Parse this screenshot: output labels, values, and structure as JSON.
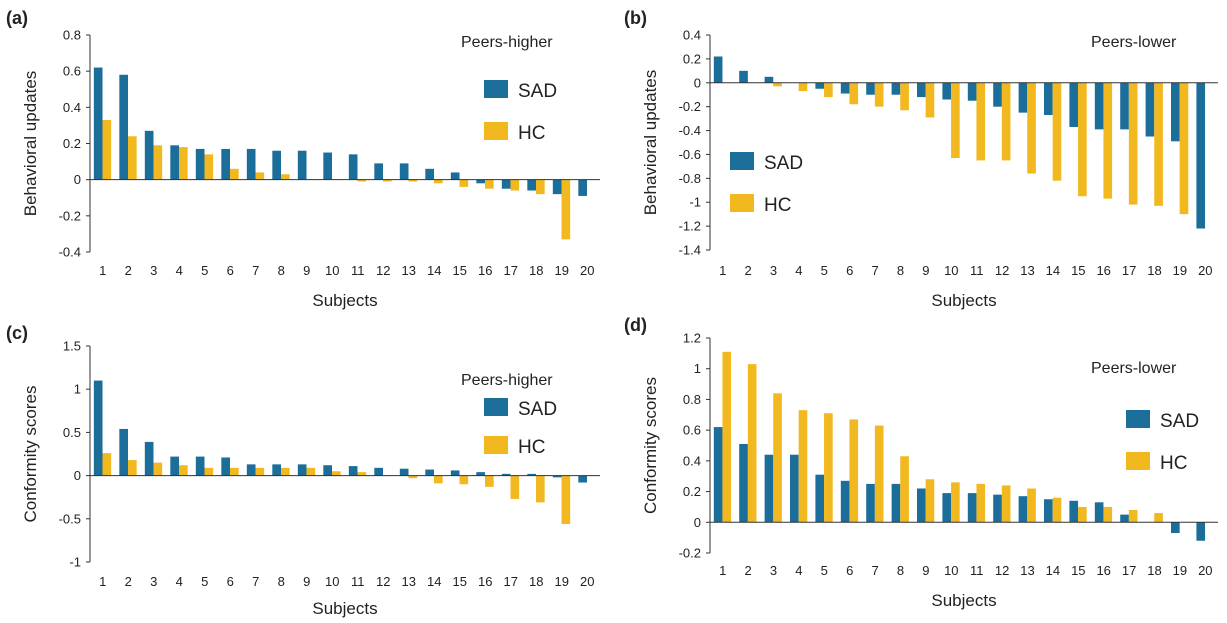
{
  "colors": {
    "SAD": "#1b6d9a",
    "HC": "#f2b81f",
    "axis": "#333333"
  },
  "chart_data": [
    {
      "type": "bar",
      "panel_label": "(a)",
      "annotation": "Peers-higher",
      "xlabel": "Subjects",
      "ylabel": "Behavioral updates",
      "ylim": [
        -0.4,
        0.8
      ],
      "yticks": [
        {
          "v": 0.8,
          "t": "0.8"
        },
        {
          "v": 0.6,
          "t": "0.6"
        },
        {
          "v": 0.4,
          "t": "0.4"
        },
        {
          "v": 0.2,
          "t": "0.2"
        },
        {
          "v": 0,
          "t": "0"
        },
        {
          "v": -0.2,
          "t": "-0.2"
        },
        {
          "v": -0.4,
          "t": "-0.4"
        }
      ],
      "categories": [
        "1",
        "2",
        "3",
        "4",
        "5",
        "6",
        "7",
        "8",
        "9",
        "10",
        "11",
        "12",
        "13",
        "14",
        "15",
        "16",
        "17",
        "18",
        "19",
        "20"
      ],
      "legend": [
        "SAD",
        "HC"
      ],
      "series": [
        {
          "name": "SAD",
          "values": [
            0.62,
            0.58,
            0.27,
            0.19,
            0.17,
            0.17,
            0.17,
            0.16,
            0.16,
            0.15,
            0.14,
            0.09,
            0.09,
            0.06,
            0.04,
            -0.02,
            -0.05,
            -0.06,
            -0.08,
            -0.09
          ]
        },
        {
          "name": "HC",
          "values": [
            0.33,
            0.24,
            0.19,
            0.18,
            0.14,
            0.06,
            0.04,
            0.03,
            0.0,
            0.0,
            -0.01,
            -0.01,
            -0.01,
            -0.02,
            -0.04,
            -0.05,
            -0.06,
            -0.08,
            -0.33,
            0.0
          ]
        }
      ]
    },
    {
      "type": "bar",
      "panel_label": "(b)",
      "annotation": "Peers-lower",
      "xlabel": "Subjects",
      "ylabel": "Behavioral updates",
      "ylim": [
        -1.4,
        0.4
      ],
      "yticks": [
        {
          "v": 0.4,
          "t": "0.4"
        },
        {
          "v": 0.2,
          "t": "0.2"
        },
        {
          "v": 0,
          "t": "0"
        },
        {
          "v": -0.2,
          "t": "-0.2"
        },
        {
          "v": -0.4,
          "t": "-0.4"
        },
        {
          "v": -0.6,
          "t": "-0.6"
        },
        {
          "v": -0.8,
          "t": "-0.8"
        },
        {
          "v": -1,
          "t": "-1"
        },
        {
          "v": -1.2,
          "t": "-1.2"
        },
        {
          "v": -1.4,
          "t": "-1.4"
        }
      ],
      "categories": [
        "1",
        "2",
        "3",
        "4",
        "5",
        "6",
        "7",
        "8",
        "9",
        "10",
        "11",
        "12",
        "13",
        "14",
        "15",
        "16",
        "17",
        "18",
        "19",
        "20"
      ],
      "legend": [
        "SAD",
        "HC"
      ],
      "series": [
        {
          "name": "SAD",
          "values": [
            0.22,
            0.1,
            0.05,
            0.0,
            -0.05,
            -0.09,
            -0.1,
            -0.1,
            -0.12,
            -0.14,
            -0.15,
            -0.2,
            -0.25,
            -0.27,
            -0.37,
            -0.39,
            -0.39,
            -0.45,
            -0.49,
            -1.22
          ]
        },
        {
          "name": "HC",
          "values": [
            0.0,
            0.0,
            -0.03,
            -0.07,
            -0.12,
            -0.18,
            -0.2,
            -0.23,
            -0.29,
            -0.63,
            -0.65,
            -0.65,
            -0.76,
            -0.82,
            -0.95,
            -0.97,
            -1.02,
            -1.03,
            -1.1,
            0.0
          ]
        }
      ]
    },
    {
      "type": "bar",
      "panel_label": "(c)",
      "annotation": "Peers-higher",
      "xlabel": "Subjects",
      "ylabel": "Conformity scores",
      "ylim": [
        -1,
        1.5
      ],
      "yticks": [
        {
          "v": 1.5,
          "t": "1.5"
        },
        {
          "v": 1,
          "t": "1"
        },
        {
          "v": 0.5,
          "t": "0.5"
        },
        {
          "v": 0,
          "t": "0"
        },
        {
          "v": -0.5,
          "t": "-0.5"
        },
        {
          "v": -1,
          "t": "-1"
        }
      ],
      "categories": [
        "1",
        "2",
        "3",
        "4",
        "5",
        "6",
        "7",
        "8",
        "9",
        "10",
        "11",
        "12",
        "13",
        "14",
        "15",
        "16",
        "17",
        "18",
        "19",
        "20"
      ],
      "legend": [
        "SAD",
        "HC"
      ],
      "series": [
        {
          "name": "SAD",
          "values": [
            1.1,
            0.54,
            0.39,
            0.22,
            0.22,
            0.21,
            0.13,
            0.13,
            0.13,
            0.12,
            0.11,
            0.09,
            0.08,
            0.07,
            0.06,
            0.04,
            0.02,
            0.02,
            -0.02,
            -0.08
          ]
        },
        {
          "name": "HC",
          "values": [
            0.26,
            0.18,
            0.15,
            0.12,
            0.09,
            0.09,
            0.09,
            0.09,
            0.09,
            0.05,
            0.04,
            0.0,
            -0.03,
            -0.09,
            -0.1,
            -0.13,
            -0.27,
            -0.31,
            -0.56,
            0.0
          ]
        }
      ]
    },
    {
      "type": "bar",
      "panel_label": "(d)",
      "annotation": "Peers-lower",
      "xlabel": "Subjects",
      "ylabel": "Conformity scores",
      "ylim": [
        -0.2,
        1.2
      ],
      "yticks": [
        {
          "v": 1.2,
          "t": "1.2"
        },
        {
          "v": 1,
          "t": "1"
        },
        {
          "v": 0.8,
          "t": "0.8"
        },
        {
          "v": 0.6,
          "t": "0.6"
        },
        {
          "v": 0.4,
          "t": "0.4"
        },
        {
          "v": 0.2,
          "t": "0.2"
        },
        {
          "v": 0,
          "t": "0"
        },
        {
          "v": -0.2,
          "t": "-0.2"
        }
      ],
      "categories": [
        "1",
        "2",
        "3",
        "4",
        "5",
        "6",
        "7",
        "8",
        "9",
        "10",
        "11",
        "12",
        "13",
        "14",
        "15",
        "16",
        "17",
        "18",
        "19",
        "20"
      ],
      "legend": [
        "SAD",
        "HC"
      ],
      "series": [
        {
          "name": "SAD",
          "values": [
            0.62,
            0.51,
            0.44,
            0.44,
            0.31,
            0.27,
            0.25,
            0.25,
            0.22,
            0.19,
            0.19,
            0.18,
            0.17,
            0.15,
            0.14,
            0.13,
            0.05,
            0.0,
            -0.07,
            -0.12
          ]
        },
        {
          "name": "HC",
          "values": [
            1.11,
            1.03,
            0.84,
            0.73,
            0.71,
            0.67,
            0.63,
            0.43,
            0.28,
            0.26,
            0.25,
            0.24,
            0.22,
            0.16,
            0.1,
            0.1,
            0.08,
            0.06,
            0.0,
            0.0
          ]
        }
      ]
    }
  ]
}
